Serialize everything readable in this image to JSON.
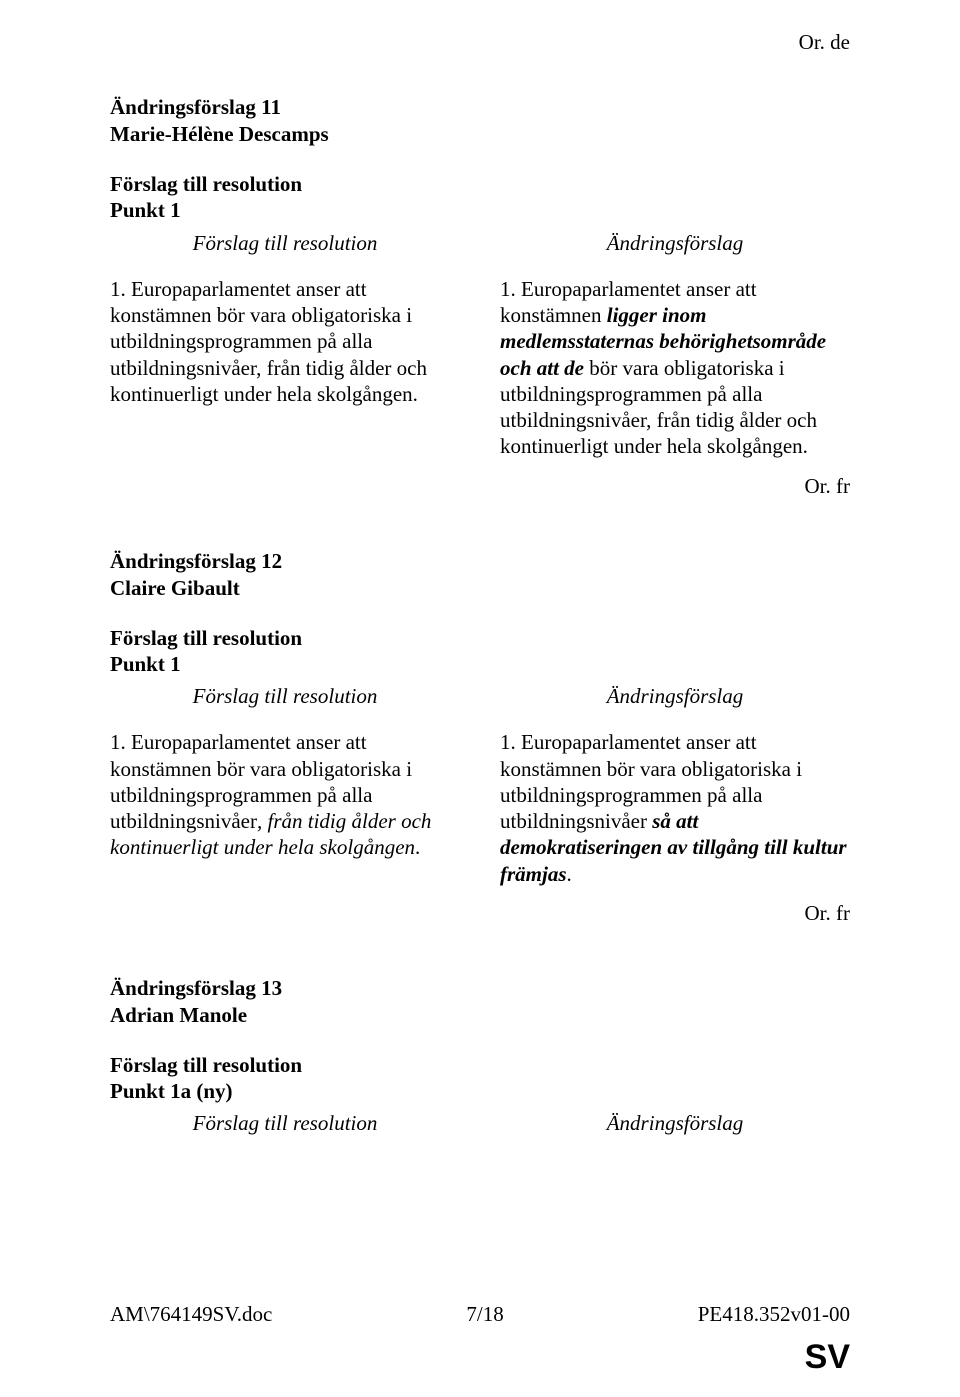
{
  "top_origin": "Or. de",
  "amendments": [
    {
      "number_line": "Ändringsförslag 11",
      "proposer": "Marie-Hélène Descamps",
      "section_title": "Förslag till resolution",
      "section_point": "Punkt 1",
      "left_heading": "Förslag till resolution",
      "right_heading": "Ändringsförslag",
      "left_html": "1. Europaparlamentet anser att konstämnen bör vara obligatoriska i utbildningsprogrammen på alla utbildningsnivåer, från tidig ålder och kontinuerligt under hela skolgången.",
      "right_html": "1. Europaparlamentet anser att konstämnen <b><i>ligger inom medlemsstaternas behörighetsområde och att de</i></b> bör vara obligatoriska i utbildningsprogrammen på alla utbildningsnivåer, från tidig ålder och kontinuerligt under hela skolgången.",
      "origin_after": "Or. fr"
    },
    {
      "number_line": "Ändringsförslag 12",
      "proposer": "Claire Gibault",
      "section_title": "Förslag till resolution",
      "section_point": "Punkt 1",
      "left_heading": "Förslag till resolution",
      "right_heading": "Ändringsförslag",
      "left_html": "1. Europaparlamentet anser att konstämnen bör vara obligatoriska i utbildningsprogrammen på alla utbildningsnivåer<i>, från tidig ålder och kontinuerligt under hela skolgången</i>.",
      "right_html": "1. Europaparlamentet anser att konstämnen bör vara obligatoriska i utbildningsprogrammen på alla utbildningsnivåer <b><i>så att demokratiseringen av tillgång till kultur främjas</i></b>.",
      "origin_after": "Or. fr"
    },
    {
      "number_line": "Ändringsförslag 13",
      "proposer": "Adrian Manole",
      "section_title": "Förslag till resolution",
      "section_point": "Punkt 1a (ny)",
      "left_heading": "Förslag till resolution",
      "right_heading": "Ändringsförslag",
      "left_html": "",
      "right_html": "",
      "origin_after": ""
    }
  ],
  "footer": {
    "left": "AM\\764149SV.doc",
    "center": "7/18",
    "right": "PE418.352v01-00"
  },
  "lang_mark": "SV"
}
